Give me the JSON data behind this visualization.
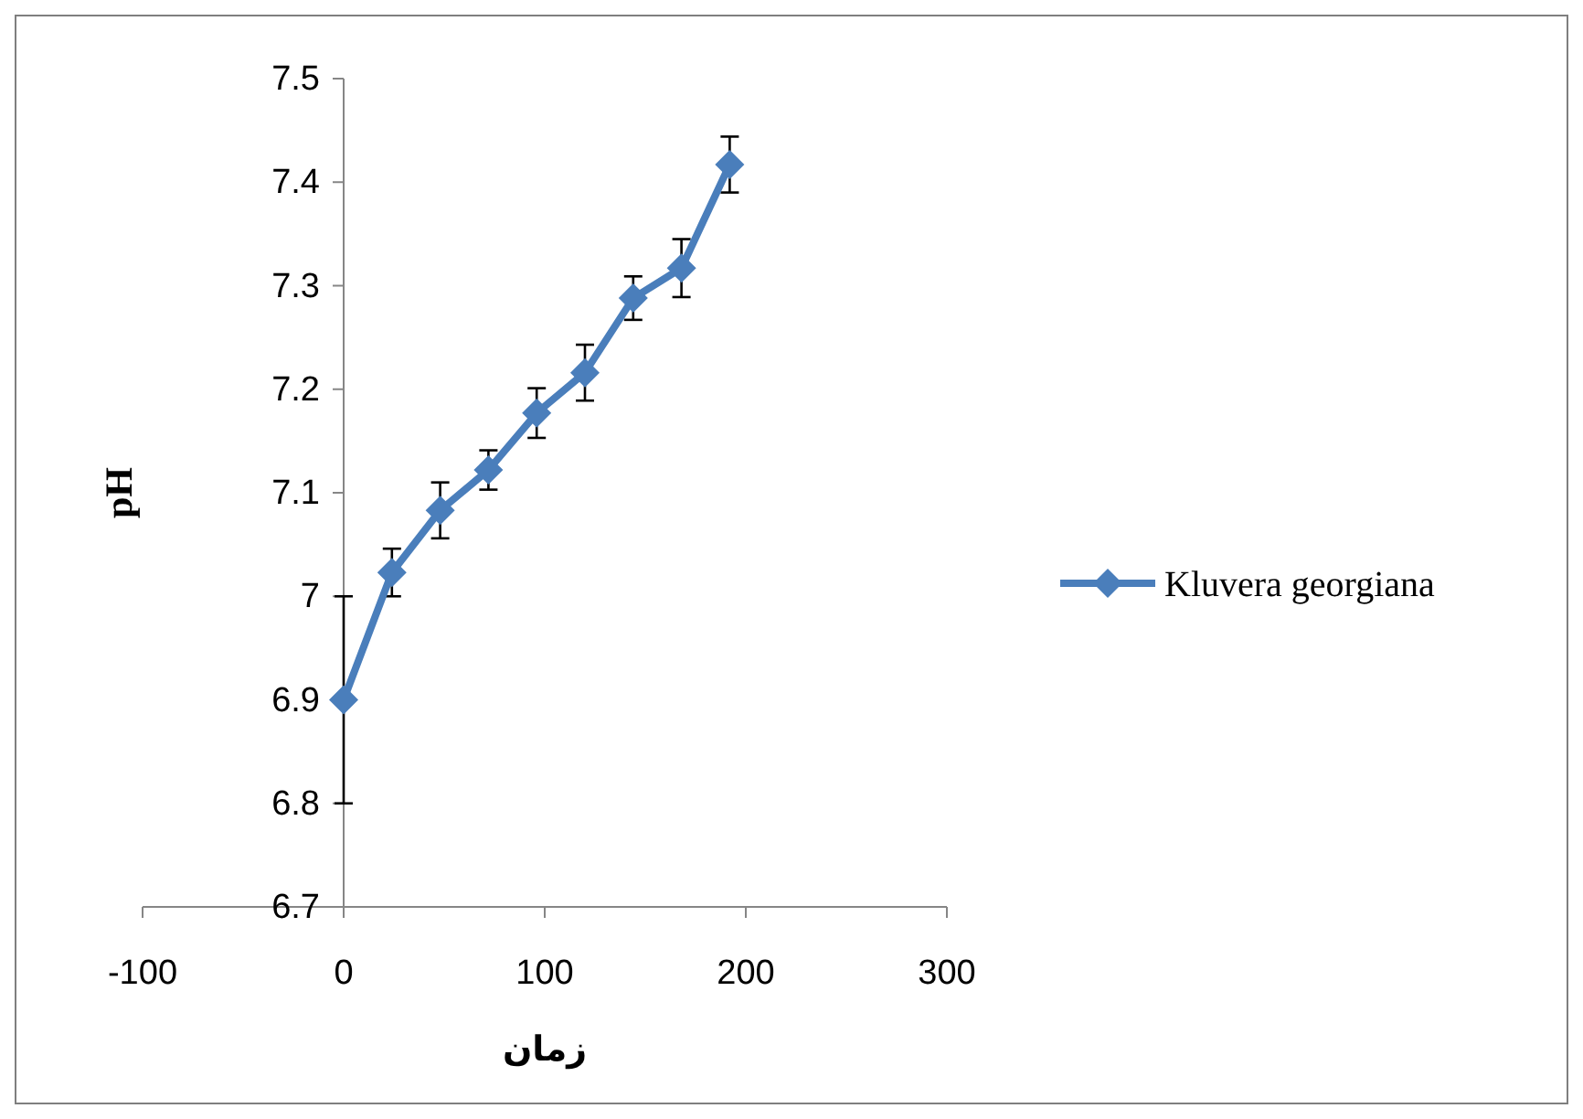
{
  "chart_data": {
    "type": "line",
    "xlabel": "زمان",
    "ylabel": "pH",
    "x": [
      0,
      24,
      48,
      72,
      96,
      120,
      144,
      168,
      192
    ],
    "series": [
      {
        "name": "Kluvera georgiana",
        "color": "#4a7ebb",
        "values": [
          6.9,
          7.023,
          7.083,
          7.122,
          7.177,
          7.216,
          7.288,
          7.317,
          7.417
        ],
        "errors": [
          0.1,
          0.023,
          0.027,
          0.019,
          0.024,
          0.027,
          0.021,
          0.028,
          0.027
        ]
      }
    ],
    "xlim": [
      -100,
      300
    ],
    "xticks": [
      -100,
      0,
      100,
      200,
      300
    ],
    "ylim": [
      6.7,
      7.5
    ],
    "yticks": [
      6.7,
      6.8,
      6.9,
      7,
      7.1,
      7.2,
      7.3,
      7.4,
      7.5
    ],
    "marker": "diamond",
    "line_style": "solid",
    "legend": "right",
    "grid": false
  }
}
